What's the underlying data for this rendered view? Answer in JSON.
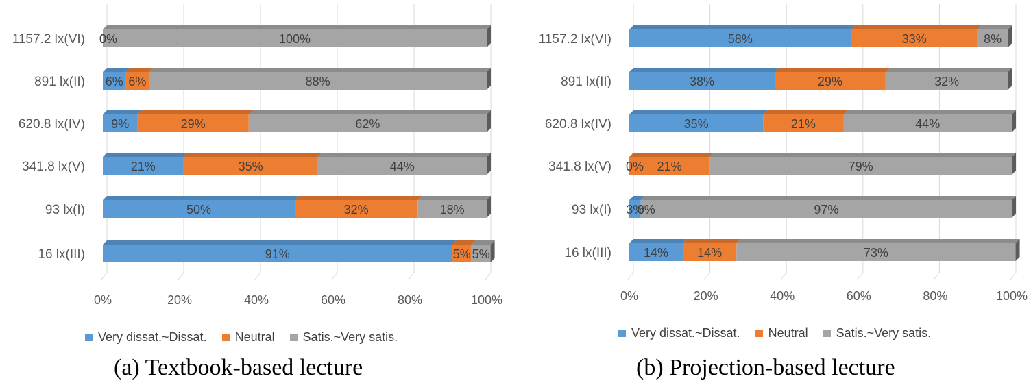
{
  "colors": {
    "very_dissat": "#5b9bd5",
    "neutral": "#ed7d31",
    "satis": "#a5a5a5"
  },
  "chart_data": [
    {
      "type": "bar",
      "stacked": "percent",
      "orientation": "horizontal",
      "title": "(a) Textbook-based lecture",
      "categories": [
        "1157.2 lx(VI)",
        "891 lx(II)",
        "620.8 lx(IV)",
        "341.8 lx(V)",
        "93 lx(I)",
        "16 lx(III)"
      ],
      "series": [
        {
          "name": "Very dissat.~Dissat.",
          "values": [
            0,
            6,
            9,
            21,
            50,
            91
          ],
          "labels": [
            "0%",
            "6%",
            "9%",
            "21%",
            "50%",
            "91%"
          ]
        },
        {
          "name": "Neutral",
          "values": [
            0,
            6,
            29,
            35,
            32,
            5
          ],
          "labels": [
            "0%",
            "6%",
            "29%",
            "35%",
            "32%",
            "5%"
          ]
        },
        {
          "name": "Satis.~Very satis.",
          "values": [
            100,
            88,
            62,
            44,
            18,
            5
          ],
          "labels": [
            "100%",
            "88%",
            "62%",
            "44%",
            "18%",
            "5%"
          ]
        }
      ],
      "xlim": [
        0,
        100
      ],
      "xticks": [
        "0%",
        "20%",
        "40%",
        "60%",
        "80%",
        "100%"
      ],
      "legend_position": "bottom"
    },
    {
      "type": "bar",
      "stacked": "percent",
      "orientation": "horizontal",
      "title": "(b) Projection-based lecture",
      "categories": [
        "1157.2 lx(VI)",
        "891 lx(II)",
        "620.8 lx(IV)",
        "341.8 lx(V)",
        "93 lx(I)",
        "16 lx(III)"
      ],
      "series": [
        {
          "name": "Very dissat.~Dissat.",
          "values": [
            58,
            38,
            35,
            0,
            3,
            14
          ],
          "labels": [
            "58%",
            "38%",
            "35%",
            "0%",
            "3%",
            "14%"
          ]
        },
        {
          "name": "Neutral",
          "values": [
            33,
            29,
            21,
            21,
            0,
            14
          ],
          "labels": [
            "33%",
            "29%",
            "21%",
            "21%",
            "0%",
            "14%"
          ]
        },
        {
          "name": "Satis.~Very satis.",
          "values": [
            8,
            32,
            44,
            79,
            97,
            73
          ],
          "labels": [
            "8%",
            "32%",
            "44%",
            "79%",
            "97%",
            "73%"
          ]
        }
      ],
      "xlim": [
        0,
        100
      ],
      "xticks": [
        "0%",
        "20%",
        "40%",
        "60%",
        "80%",
        "100%"
      ],
      "legend_position": "bottom"
    }
  ]
}
